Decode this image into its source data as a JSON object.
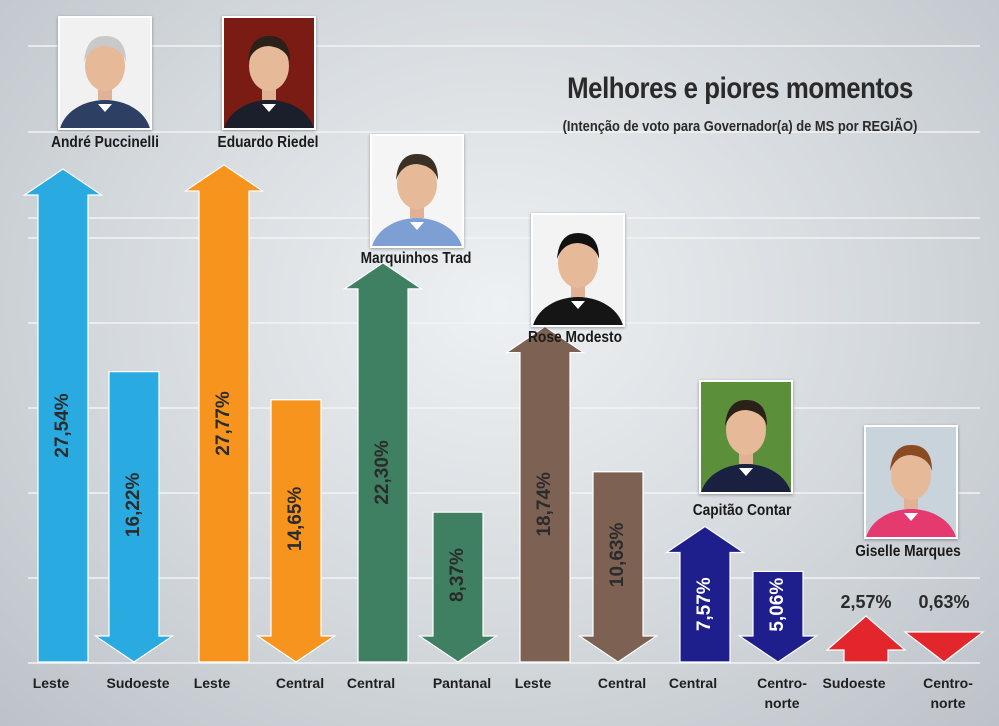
{
  "header": {
    "title": "Melhores e piores momentos",
    "subtitle": "(Intenção de voto para Governador(a) de MS por REGIÃO)"
  },
  "candidates": [
    {
      "name": "André Puccinelli",
      "color": "#29abe2",
      "photo_bg": "#f1f1f1",
      "suit": "#2d3f63",
      "hair": "#c9c9c9"
    },
    {
      "name": "Eduardo Riedel",
      "color": "#f7941d",
      "photo_bg": "#7a1b14",
      "suit": "#1b1f2b",
      "hair": "#2a2119"
    },
    {
      "name": "Marquinhos Trad",
      "color": "#3f7f62",
      "photo_bg": "#f5f5f5",
      "suit": "#7d9fd3",
      "hair": "#3a3026"
    },
    {
      "name": "Rose Modesto",
      "color": "#7d6254",
      "photo_bg": "#f3f3f3",
      "suit": "#151515",
      "hair": "#111111"
    },
    {
      "name": "Capitão Contar",
      "color": "#1e1f8c",
      "photo_bg": "#5c8f3a",
      "suit": "#1a2140",
      "hair": "#2b2118"
    },
    {
      "name": "Giselle Marques",
      "color": "#e3262b",
      "photo_bg": "#c9d3db",
      "suit": "#e43a6f",
      "hair": "#8a4a22"
    }
  ],
  "chart_data": {
    "type": "bar",
    "title": "Melhores e piores momentos",
    "subtitle": "(Intenção de voto para Governador(a) de MS por REGIÃO)",
    "unit": "%",
    "bars": [
      {
        "candidate": "André Puccinelli",
        "region": "Leste",
        "value": 27.54,
        "label": "27,54%",
        "direction": "up",
        "color": "#29abe2"
      },
      {
        "candidate": "André Puccinelli",
        "region": "Sudoeste",
        "value": 16.22,
        "label": "16,22%",
        "direction": "down",
        "color": "#29abe2"
      },
      {
        "candidate": "Eduardo Riedel",
        "region": "Leste",
        "value": 27.77,
        "label": "27,77%",
        "direction": "up",
        "color": "#f7941d"
      },
      {
        "candidate": "Eduardo Riedel",
        "region": "Central",
        "value": 14.65,
        "label": "14,65%",
        "direction": "down",
        "color": "#f7941d"
      },
      {
        "candidate": "Marquinhos Trad",
        "region": "Central",
        "value": 22.3,
        "label": "22,30%",
        "direction": "up",
        "color": "#3f7f62"
      },
      {
        "candidate": "Marquinhos Trad",
        "region": "Pantanal",
        "value": 8.37,
        "label": "8,37%",
        "direction": "down",
        "color": "#3f7f62"
      },
      {
        "candidate": "Rose Modesto",
        "region": "Leste",
        "value": 18.74,
        "label": "18,74%",
        "direction": "up",
        "color": "#7d6254"
      },
      {
        "candidate": "Rose Modesto",
        "region": "Central",
        "value": 10.63,
        "label": "10,63%",
        "direction": "down",
        "color": "#7d6254"
      },
      {
        "candidate": "Capitão Contar",
        "region": "Central",
        "value": 7.57,
        "label": "7,57%",
        "direction": "up",
        "color": "#1e1f8c"
      },
      {
        "candidate": "Capitão Contar",
        "region": "Centro-norte",
        "value": 5.06,
        "label": "5,06%",
        "direction": "down",
        "color": "#1e1f8c"
      },
      {
        "candidate": "Giselle Marques",
        "region": "Sudoeste",
        "value": 2.57,
        "label": "2,57%",
        "direction": "up",
        "color": "#e3262b"
      },
      {
        "candidate": "Giselle Marques",
        "region": "Centro-norte",
        "value": 0.63,
        "label": "0,63%",
        "direction": "down",
        "color": "#e3262b"
      }
    ],
    "region_labels": [
      "Leste",
      "Sudoeste",
      "Leste",
      "Central",
      "Central",
      "Pantanal",
      "Leste",
      "Central",
      "Central",
      "Centro-\nnorte",
      "Sudoeste",
      "Centro-\nnorte"
    ],
    "grid": true
  }
}
